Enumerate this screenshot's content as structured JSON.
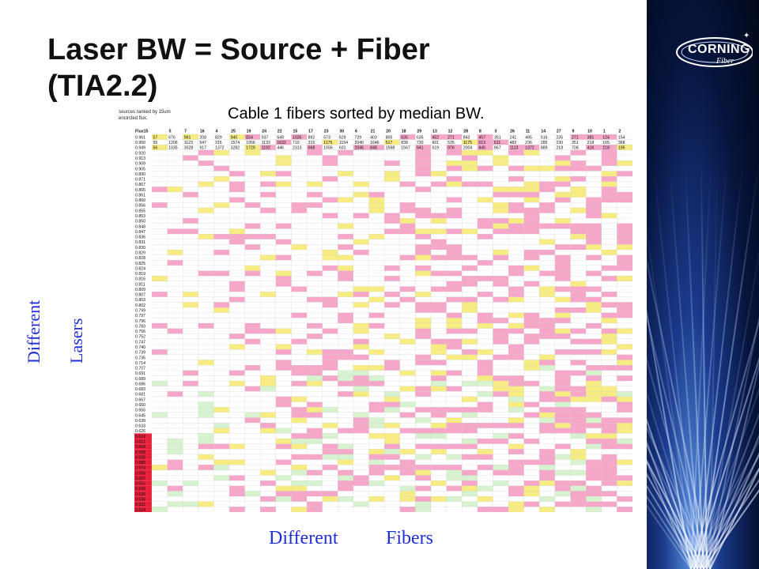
{
  "slide": {
    "title_line1": "Laser BW = Source + Fiber",
    "title_line2": "(TIA2.2)"
  },
  "logo": {
    "name": "CORNING",
    "sub": "Fiber"
  },
  "heatmap": {
    "title": "Cable 1 fibers sorted by median BW.",
    "note": "sources ranked by 15um encircled flux.",
    "corner_label": "Flux15",
    "fiber_ids": [
      "5",
      "7",
      "16",
      "4",
      "25",
      "19",
      "24",
      "22",
      "15",
      "17",
      "23",
      "30",
      "6",
      "21",
      "20",
      "18",
      "29",
      "13",
      "12",
      "28",
      "8",
      "3",
      "26",
      "11",
      "14",
      "27",
      "9",
      "10",
      "1",
      "2"
    ],
    "row_labels": [
      "0.961",
      "0.950",
      "0.949",
      "0.920",
      "0.913",
      "0.909",
      "0.905",
      "0.890",
      "0.871",
      "0.867",
      "0.865",
      "0.861",
      "0.860",
      "0.856",
      "0.855",
      "0.853",
      "0.850",
      "0.848",
      "0.847",
      "0.836",
      "0.831",
      "0.830",
      "0.829",
      "0.828",
      "0.825",
      "0.824",
      "0.819",
      "0.816",
      "0.811",
      "0.809",
      "0.807",
      "0.803",
      "0.802",
      "0.799",
      "0.797",
      "0.796",
      "0.783",
      "0.756",
      "0.752",
      "0.747",
      "0.740",
      "0.739",
      "0.735",
      "0.714",
      "0.707",
      "0.691",
      "0.689",
      "0.686",
      "0.683",
      "0.681",
      "0.667",
      "0.660",
      "0.655",
      "0.645",
      "0.639",
      "0.633",
      "0.626",
      "0.620",
      "0.611",
      "0.604",
      "0.598",
      "0.592",
      "0.585",
      "0.574",
      "0.566",
      "0.557",
      "0.551",
      "0.543",
      "0.536",
      "0.530",
      "0.521",
      "0.514"
    ],
    "first_rows": [
      [
        "57",
        "676",
        "961",
        "208",
        "829",
        "940",
        "824",
        "937",
        "649",
        "1035",
        "892",
        "573",
        "529",
        "729",
        "403",
        "805",
        "635",
        "635",
        "452",
        "271",
        "843",
        "457",
        "351",
        "241",
        "495",
        "516",
        "235",
        "271",
        "381",
        "124",
        "154"
      ],
      [
        "55",
        "1206",
        "1123",
        "547",
        "315",
        "1574",
        "1956",
        "1133",
        "1632",
        "710",
        "315",
        "1175",
        "1154",
        "2040",
        "1646",
        "517",
        "838",
        "730",
        "601",
        "535",
        "1175",
        "613",
        "511",
        "482",
        "236",
        "285",
        "230",
        "351",
        "218",
        "165",
        "368"
      ],
      [
        "56",
        "1035",
        "3028",
        "917",
        "1372",
        "3282",
        "1729",
        "1102",
        "446",
        "2313",
        "668",
        "1556",
        "631",
        "2046",
        "848",
        "1598",
        "1567",
        "941",
        "619",
        "976",
        "2004",
        "845",
        "867",
        "1113",
        "1372",
        "889",
        "218",
        "708",
        "416",
        "218",
        "195"
      ]
    ]
  },
  "annotations": {
    "left_word1": "Different",
    "left_word2": "Lasers",
    "bottom_word1": "Different",
    "bottom_word2": "Fibers"
  },
  "colors": {
    "text": "#111111",
    "label_blue": "#1f2fd6",
    "cell_pink": "#f6a6c9",
    "cell_yellow": "#f7ec82",
    "cell_red": "#e8203a",
    "cell_green": "#d6f2cf",
    "grid": "#cccccc"
  }
}
